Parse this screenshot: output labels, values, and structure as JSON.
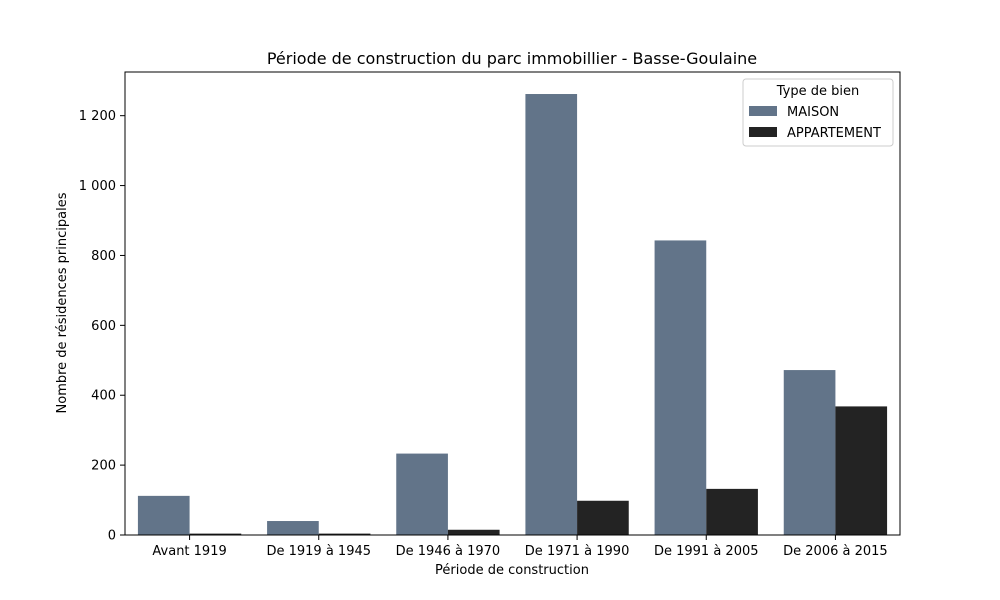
{
  "chart_data": {
    "type": "bar",
    "title": "Période de construction du parc immobillier - Basse-Goulaine",
    "xlabel": "Période de construction",
    "ylabel": "Nombre de résidences principales",
    "categories": [
      "Avant 1919",
      "De 1919 à 1945",
      "De 1946 à 1970",
      "De 1971 à 1990",
      "De 1991 à 2005",
      "De 2006 à 2015"
    ],
    "series": [
      {
        "name": "MAISON",
        "color": "#627489",
        "values": [
          112,
          40,
          233,
          1262,
          843,
          472
        ]
      },
      {
        "name": "APPARTEMENT",
        "color": "#232323",
        "values": [
          4,
          4,
          15,
          98,
          132,
          368
        ]
      }
    ],
    "ylim": [
      0,
      1325
    ],
    "yticks": [
      0,
      200,
      400,
      600,
      800,
      1000,
      1200
    ],
    "ytick_labels": [
      "0",
      "200",
      "400",
      "600",
      "800",
      "1 000",
      "1 200"
    ],
    "grid": false,
    "legend": {
      "title": "Type de bien",
      "placement": "top-right"
    }
  }
}
